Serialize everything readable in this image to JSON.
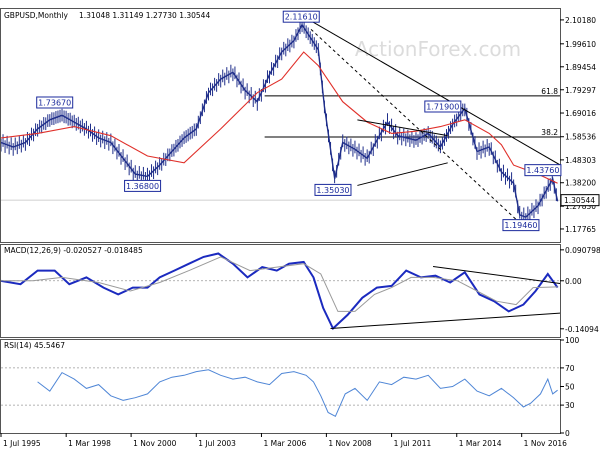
{
  "header": {
    "symbol": "GBPUSD,Monthly",
    "ohlc": "1.31048 1.31149 1.27730 1.30544"
  },
  "watermark": "ActionForex.com",
  "colors": {
    "candles": "#1f2e8a",
    "sma": "#e0302a",
    "macd": "#1b2abf",
    "signal": "#9a9a9a",
    "rsi": "#4f86d6",
    "trendline": "#000000",
    "level": "#000000",
    "label_text": "#1b2a9c",
    "axis_text": "#000000",
    "dotted": "#8a8a8a",
    "watermark": "#dcdcdc"
  },
  "chart_data": [
    {
      "type": "line",
      "panel": "price",
      "title": "GBPUSD,Monthly",
      "ylim": [
        1.12,
        2.15
      ],
      "y_ticks": [
        "2.10180",
        "1.99610",
        "1.89454",
        "1.79297",
        "1.69016",
        "1.58536",
        "1.48303",
        "1.38200",
        "1.27830",
        "1.17765"
      ],
      "current_price_label": "1.30544",
      "x_range": [
        1995.5,
        2018.4
      ],
      "x_tick_labels": [
        "1 Jul 1995",
        "1 Mar 1998",
        "1 Nov 2000",
        "1 Jul 2003",
        "1 Mar 2006",
        "1 Nov 2008",
        "1 Jul 2011",
        "1 Mar 2014",
        "1 Nov 2016"
      ],
      "x_tick_positions": [
        1995.5,
        1998.17,
        2000.83,
        2003.5,
        2006.17,
        2008.83,
        2011.5,
        2014.17,
        2016.83
      ],
      "series": [
        {
          "kind": "price",
          "x": [
            1995.5,
            1996.0,
            1996.5,
            1997.0,
            1997.5,
            1998.0,
            1998.5,
            1999.0,
            1999.5,
            2000.0,
            2000.5,
            2001.0,
            2001.5,
            2002.0,
            2002.5,
            2003.0,
            2003.5,
            2004.0,
            2004.5,
            2005.0,
            2005.5,
            2006.0,
            2006.5,
            2007.0,
            2007.5,
            2007.83,
            2008.5,
            2008.75,
            2009.17,
            2009.5,
            2010.0,
            2010.5,
            2011.0,
            2011.33,
            2011.75,
            2012.5,
            2013.0,
            2013.5,
            2014.0,
            2014.5,
            2015.0,
            2015.5,
            2016.0,
            2016.5,
            2016.75,
            2017.0,
            2017.5,
            2017.75,
            2018.1,
            2018.3
          ],
          "values": [
            1.56,
            1.54,
            1.56,
            1.62,
            1.66,
            1.68,
            1.65,
            1.62,
            1.58,
            1.56,
            1.49,
            1.42,
            1.41,
            1.46,
            1.52,
            1.58,
            1.62,
            1.78,
            1.84,
            1.87,
            1.79,
            1.74,
            1.86,
            1.96,
            2.01,
            2.08,
            1.97,
            1.72,
            1.4,
            1.56,
            1.53,
            1.49,
            1.59,
            1.65,
            1.59,
            1.57,
            1.6,
            1.54,
            1.64,
            1.71,
            1.52,
            1.54,
            1.43,
            1.38,
            1.24,
            1.23,
            1.28,
            1.33,
            1.4,
            1.3
          ]
        },
        {
          "kind": "sma",
          "x": [
            1995.5,
            1997.0,
            1998.5,
            2000.0,
            2001.5,
            2003.0,
            2004.5,
            2006.0,
            2007.0,
            2007.9,
            2008.5,
            2009.5,
            2010.5,
            2011.5,
            2012.5,
            2013.5,
            2014.5,
            2015.5,
            2016.0,
            2016.5,
            2017.0,
            2017.5,
            2018.3
          ],
          "values": [
            1.58,
            1.6,
            1.63,
            1.59,
            1.5,
            1.47,
            1.62,
            1.78,
            1.84,
            1.96,
            1.9,
            1.74,
            1.65,
            1.6,
            1.61,
            1.63,
            1.66,
            1.6,
            1.55,
            1.46,
            1.44,
            1.42,
            1.38
          ]
        }
      ],
      "labels": [
        {
          "text": "2.11610",
          "x": 2007.8,
          "y": 2.116
        },
        {
          "text": "1.73670",
          "x": 1997.7,
          "y": 1.7367
        },
        {
          "text": "1.36800",
          "x": 2001.3,
          "y": 1.368
        },
        {
          "text": "1.35030",
          "x": 2009.1,
          "y": 1.3503
        },
        {
          "text": "1.71900",
          "x": 2013.6,
          "y": 1.719
        },
        {
          "text": "1.43760",
          "x": 2017.7,
          "y": 1.4376
        },
        {
          "text": "1.19460",
          "x": 2016.8,
          "y": 1.1946
        }
      ],
      "levels": [
        {
          "name": "61.8",
          "value": 1.766
        },
        {
          "name": "38.2",
          "value": 1.584
        }
      ],
      "annotations": [
        {
          "kind": "trendline",
          "x": [
            2007.9,
            2021.3
          ],
          "y": [
            2.116,
            1.28
          ]
        },
        {
          "kind": "trendline",
          "x": [
            2010.1,
            2013.8
          ],
          "y": [
            1.66,
            1.59
          ]
        },
        {
          "kind": "trendline",
          "x": [
            2010.1,
            2013.8
          ],
          "y": [
            1.37,
            1.47
          ]
        },
        {
          "kind": "dotted",
          "x": [
            2008.2,
            2016.8
          ],
          "y": [
            2.06,
            1.2
          ]
        }
      ]
    },
    {
      "type": "line",
      "panel": "macd",
      "title": "MACD(12,26,9) -0.020527 -0.018485",
      "ylim": [
        -0.165,
        0.105
      ],
      "y_ticks": [
        "0.090798",
        "0.00",
        "-0.14094"
      ],
      "series": [
        {
          "name": "MACD",
          "x": [
            1995.5,
            1996.3,
            1997.0,
            1997.7,
            1998.3,
            1999.0,
            1999.7,
            2000.3,
            2000.9,
            2001.5,
            2002.0,
            2002.6,
            2003.2,
            2003.8,
            2004.4,
            2005.0,
            2005.6,
            2006.2,
            2006.8,
            2007.3,
            2007.9,
            2008.3,
            2008.7,
            2009.1,
            2009.7,
            2010.3,
            2010.9,
            2011.5,
            2012.1,
            2012.7,
            2013.3,
            2013.9,
            2014.5,
            2015.1,
            2015.7,
            2016.3,
            2016.9,
            2017.4,
            2017.9,
            2018.3
          ],
          "values": [
            0.0,
            -0.01,
            0.03,
            0.03,
            -0.01,
            0.01,
            -0.02,
            -0.04,
            -0.02,
            -0.02,
            0.01,
            0.03,
            0.05,
            0.07,
            0.08,
            0.05,
            0.01,
            0.04,
            0.03,
            0.05,
            0.055,
            0.01,
            -0.08,
            -0.14,
            -0.1,
            -0.05,
            -0.02,
            -0.015,
            0.03,
            0.01,
            0.015,
            -0.005,
            0.025,
            -0.04,
            -0.06,
            -0.09,
            -0.07,
            -0.03,
            0.02,
            -0.02
          ]
        },
        {
          "name": "Signal",
          "x": [
            1995.5,
            1996.8,
            1998.0,
            1999.5,
            2000.8,
            2002.0,
            2003.2,
            2004.5,
            2005.7,
            2006.8,
            2007.9,
            2008.6,
            2009.3,
            2010.0,
            2010.8,
            2011.5,
            2012.3,
            2013.2,
            2014.2,
            2015.0,
            2015.8,
            2016.6,
            2017.3,
            2018.3
          ],
          "values": [
            0.0,
            0.0,
            0.01,
            -0.005,
            -0.03,
            -0.005,
            0.03,
            0.07,
            0.03,
            0.04,
            0.05,
            0.02,
            -0.09,
            -0.09,
            -0.04,
            -0.02,
            0.01,
            0.01,
            0.0,
            -0.03,
            -0.06,
            -0.07,
            -0.02,
            -0.018
          ]
        }
      ],
      "annotations": [
        {
          "kind": "trendline",
          "x": [
            2009.0,
            2020.5
          ],
          "y": [
            -0.14,
            -0.085
          ]
        },
        {
          "kind": "trendline",
          "x": [
            2013.2,
            2020.5
          ],
          "y": [
            0.042,
            -0.028
          ]
        }
      ]
    },
    {
      "type": "line",
      "panel": "rsi",
      "title": "RSI(14) 45.5467",
      "ylim": [
        0,
        100
      ],
      "y_ticks": [
        "100",
        "70",
        "50",
        "30",
        "0"
      ],
      "levels": [
        {
          "name": "70",
          "value": 70
        },
        {
          "name": "30",
          "value": 30
        }
      ],
      "series": [
        {
          "name": "RSI(14)",
          "x": [
            1997.0,
            1997.5,
            1998.0,
            1998.5,
            1999.0,
            1999.5,
            2000.0,
            2000.5,
            2001.0,
            2001.5,
            2002.0,
            2002.5,
            2003.0,
            2003.5,
            2004.0,
            2004.5,
            2005.0,
            2005.5,
            2006.0,
            2006.5,
            2007.0,
            2007.5,
            2008.0,
            2008.3,
            2008.6,
            2008.9,
            2009.2,
            2009.6,
            2010.0,
            2010.5,
            2011.0,
            2011.5,
            2012.0,
            2012.5,
            2013.0,
            2013.5,
            2014.0,
            2014.5,
            2015.0,
            2015.5,
            2016.0,
            2016.5,
            2016.9,
            2017.2,
            2017.6,
            2017.9,
            2018.1,
            2018.3
          ],
          "values": [
            55,
            45,
            65,
            58,
            48,
            52,
            40,
            35,
            38,
            42,
            55,
            60,
            62,
            66,
            68,
            62,
            58,
            60,
            55,
            52,
            64,
            66,
            62,
            55,
            40,
            22,
            18,
            42,
            48,
            35,
            55,
            52,
            60,
            58,
            62,
            48,
            50,
            58,
            45,
            40,
            48,
            38,
            28,
            32,
            42,
            58,
            42,
            46
          ]
        }
      ]
    }
  ]
}
